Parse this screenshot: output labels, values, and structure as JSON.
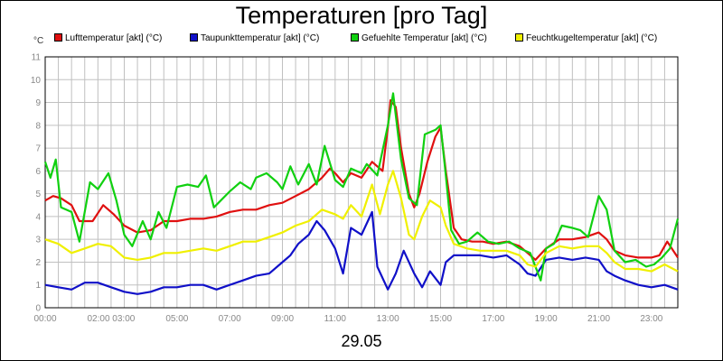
{
  "chart_data": {
    "type": "line",
    "title": "Temperaturen [pro Tag]",
    "ylabel": "°C",
    "xlabel": "29.05",
    "ylim": [
      0,
      11
    ],
    "xlim": [
      0,
      24
    ],
    "grid": true,
    "legend_position": "top",
    "y_ticks": [
      "0",
      "1",
      "2",
      "3",
      "4",
      "5",
      "6",
      "7",
      "8",
      "9",
      "10",
      "11"
    ],
    "x_ticks": [
      {
        "x": 0,
        "label": "00:00"
      },
      {
        "x": 2.5,
        "label": "02:00 03:00"
      },
      {
        "x": 5,
        "label": "05:00"
      },
      {
        "x": 7,
        "label": "07:00"
      },
      {
        "x": 9,
        "label": "09:00"
      },
      {
        "x": 11,
        "label": "11:00"
      },
      {
        "x": 13,
        "label": "13:00"
      },
      {
        "x": 15,
        "label": "15:00"
      },
      {
        "x": 17,
        "label": "17:00"
      },
      {
        "x": 19,
        "label": "19:00"
      },
      {
        "x": 21,
        "label": "21:00"
      },
      {
        "x": 23,
        "label": "23:00"
      }
    ],
    "series": [
      {
        "name": "Lufttemperatur [akt] (°C)",
        "color": "#e01010",
        "points": [
          [
            0,
            4.7
          ],
          [
            0.3,
            4.9
          ],
          [
            0.6,
            4.8
          ],
          [
            1,
            4.5
          ],
          [
            1.3,
            3.8
          ],
          [
            1.8,
            3.8
          ],
          [
            2.2,
            4.5
          ],
          [
            2.6,
            4.1
          ],
          [
            3,
            3.6
          ],
          [
            3.5,
            3.3
          ],
          [
            4,
            3.4
          ],
          [
            4.5,
            3.8
          ],
          [
            5,
            3.8
          ],
          [
            5.5,
            3.9
          ],
          [
            6,
            3.9
          ],
          [
            6.5,
            4.0
          ],
          [
            7,
            4.2
          ],
          [
            7.5,
            4.3
          ],
          [
            8,
            4.3
          ],
          [
            8.5,
            4.5
          ],
          [
            9,
            4.6
          ],
          [
            9.5,
            4.9
          ],
          [
            10,
            5.2
          ],
          [
            10.5,
            5.7
          ],
          [
            10.8,
            6.1
          ],
          [
            11,
            5.9
          ],
          [
            11.3,
            5.5
          ],
          [
            11.6,
            5.9
          ],
          [
            12,
            5.7
          ],
          [
            12.4,
            6.4
          ],
          [
            12.8,
            6.0
          ],
          [
            13,
            7.9
          ],
          [
            13.1,
            9.1
          ],
          [
            13.3,
            8.8
          ],
          [
            13.5,
            7.0
          ],
          [
            13.8,
            5.0
          ],
          [
            14,
            4.4
          ],
          [
            14.2,
            5.0
          ],
          [
            14.5,
            6.4
          ],
          [
            14.8,
            7.5
          ],
          [
            15,
            7.9
          ],
          [
            15.2,
            6.0
          ],
          [
            15.5,
            3.5
          ],
          [
            15.8,
            3.0
          ],
          [
            16.2,
            2.9
          ],
          [
            16.6,
            2.9
          ],
          [
            17,
            2.8
          ],
          [
            17.5,
            2.9
          ],
          [
            18,
            2.7
          ],
          [
            18.3,
            2.4
          ],
          [
            18.6,
            2.1
          ],
          [
            19,
            2.6
          ],
          [
            19.5,
            3.0
          ],
          [
            20,
            3.0
          ],
          [
            20.5,
            3.1
          ],
          [
            21,
            3.3
          ],
          [
            21.3,
            3.0
          ],
          [
            21.6,
            2.5
          ],
          [
            22,
            2.3
          ],
          [
            22.5,
            2.2
          ],
          [
            23,
            2.2
          ],
          [
            23.3,
            2.3
          ],
          [
            23.6,
            2.9
          ],
          [
            24,
            2.2
          ]
        ]
      },
      {
        "name": "Taupunkttemperatur [akt] (°C)",
        "color": "#1010c8",
        "points": [
          [
            0,
            1.0
          ],
          [
            0.5,
            0.9
          ],
          [
            1,
            0.8
          ],
          [
            1.5,
            1.1
          ],
          [
            2,
            1.1
          ],
          [
            2.5,
            0.9
          ],
          [
            3,
            0.7
          ],
          [
            3.5,
            0.6
          ],
          [
            4,
            0.7
          ],
          [
            4.5,
            0.9
          ],
          [
            5,
            0.9
          ],
          [
            5.5,
            1.0
          ],
          [
            6,
            1.0
          ],
          [
            6.5,
            0.8
          ],
          [
            7,
            1.0
          ],
          [
            7.5,
            1.2
          ],
          [
            8,
            1.4
          ],
          [
            8.5,
            1.5
          ],
          [
            9,
            2.0
          ],
          [
            9.3,
            2.3
          ],
          [
            9.6,
            2.8
          ],
          [
            10,
            3.2
          ],
          [
            10.3,
            3.8
          ],
          [
            10.6,
            3.4
          ],
          [
            11,
            2.6
          ],
          [
            11.3,
            1.5
          ],
          [
            11.6,
            3.5
          ],
          [
            12,
            3.2
          ],
          [
            12.4,
            4.2
          ],
          [
            12.6,
            1.8
          ],
          [
            13,
            0.8
          ],
          [
            13.3,
            1.5
          ],
          [
            13.6,
            2.5
          ],
          [
            14,
            1.5
          ],
          [
            14.3,
            0.9
          ],
          [
            14.6,
            1.6
          ],
          [
            15,
            1.0
          ],
          [
            15.2,
            2.0
          ],
          [
            15.5,
            2.3
          ],
          [
            16,
            2.3
          ],
          [
            16.5,
            2.3
          ],
          [
            17,
            2.2
          ],
          [
            17.5,
            2.3
          ],
          [
            18,
            1.9
          ],
          [
            18.3,
            1.5
          ],
          [
            18.6,
            1.4
          ],
          [
            19,
            2.1
          ],
          [
            19.5,
            2.2
          ],
          [
            20,
            2.1
          ],
          [
            20.5,
            2.2
          ],
          [
            21,
            2.1
          ],
          [
            21.3,
            1.6
          ],
          [
            21.6,
            1.4
          ],
          [
            22,
            1.2
          ],
          [
            22.5,
            1.0
          ],
          [
            23,
            0.9
          ],
          [
            23.5,
            1.0
          ],
          [
            24,
            0.8
          ]
        ]
      },
      {
        "name": "Gefuehlte Temperatur [akt] (°C)",
        "color": "#10d010",
        "points": [
          [
            0,
            6.4
          ],
          [
            0.2,
            5.7
          ],
          [
            0.4,
            6.5
          ],
          [
            0.6,
            4.4
          ],
          [
            1,
            4.2
          ],
          [
            1.3,
            2.9
          ],
          [
            1.7,
            5.5
          ],
          [
            2,
            5.2
          ],
          [
            2.4,
            5.9
          ],
          [
            2.7,
            4.7
          ],
          [
            3,
            3.2
          ],
          [
            3.3,
            2.7
          ],
          [
            3.7,
            3.8
          ],
          [
            4,
            3.0
          ],
          [
            4.3,
            4.2
          ],
          [
            4.6,
            3.5
          ],
          [
            5,
            5.3
          ],
          [
            5.4,
            5.4
          ],
          [
            5.8,
            5.3
          ],
          [
            6.1,
            5.8
          ],
          [
            6.4,
            4.4
          ],
          [
            7,
            5.1
          ],
          [
            7.4,
            5.5
          ],
          [
            7.8,
            5.2
          ],
          [
            8,
            5.7
          ],
          [
            8.4,
            5.9
          ],
          [
            8.8,
            5.5
          ],
          [
            9,
            5.2
          ],
          [
            9.3,
            6.2
          ],
          [
            9.6,
            5.4
          ],
          [
            10,
            6.3
          ],
          [
            10.3,
            5.4
          ],
          [
            10.6,
            7.1
          ],
          [
            11,
            5.6
          ],
          [
            11.3,
            5.3
          ],
          [
            11.6,
            6.1
          ],
          [
            12,
            5.9
          ],
          [
            12.2,
            6.3
          ],
          [
            12.6,
            5.8
          ],
          [
            13,
            8.0
          ],
          [
            13.2,
            9.4
          ],
          [
            13.5,
            6.5
          ],
          [
            13.8,
            4.8
          ],
          [
            14.1,
            4.5
          ],
          [
            14.4,
            7.6
          ],
          [
            14.8,
            7.8
          ],
          [
            15,
            8.0
          ],
          [
            15.2,
            5.8
          ],
          [
            15.4,
            3.4
          ],
          [
            15.7,
            2.8
          ],
          [
            16,
            2.9
          ],
          [
            16.4,
            3.3
          ],
          [
            16.8,
            2.9
          ],
          [
            17.2,
            2.8
          ],
          [
            17.6,
            2.9
          ],
          [
            18,
            2.6
          ],
          [
            18.4,
            2.4
          ],
          [
            18.8,
            1.2
          ],
          [
            19,
            2.6
          ],
          [
            19.3,
            2.8
          ],
          [
            19.6,
            3.6
          ],
          [
            20,
            3.5
          ],
          [
            20.3,
            3.4
          ],
          [
            20.6,
            3.1
          ],
          [
            21,
            4.9
          ],
          [
            21.3,
            4.3
          ],
          [
            21.6,
            2.5
          ],
          [
            22,
            2.0
          ],
          [
            22.4,
            2.1
          ],
          [
            22.8,
            1.8
          ],
          [
            23.1,
            1.9
          ],
          [
            23.4,
            2.2
          ],
          [
            23.7,
            2.6
          ],
          [
            24,
            3.9
          ]
        ]
      },
      {
        "name": "Feuchtkugeltemperatur [akt] (°C)",
        "color": "#f0f000",
        "points": [
          [
            0,
            3.0
          ],
          [
            0.5,
            2.8
          ],
          [
            1,
            2.4
          ],
          [
            1.5,
            2.6
          ],
          [
            2,
            2.8
          ],
          [
            2.5,
            2.7
          ],
          [
            3,
            2.2
          ],
          [
            3.5,
            2.1
          ],
          [
            4,
            2.2
          ],
          [
            4.5,
            2.4
          ],
          [
            5,
            2.4
          ],
          [
            5.5,
            2.5
          ],
          [
            6,
            2.6
          ],
          [
            6.5,
            2.5
          ],
          [
            7,
            2.7
          ],
          [
            7.5,
            2.9
          ],
          [
            8,
            2.9
          ],
          [
            8.5,
            3.1
          ],
          [
            9,
            3.3
          ],
          [
            9.5,
            3.6
          ],
          [
            10,
            3.8
          ],
          [
            10.5,
            4.3
          ],
          [
            11,
            4.1
          ],
          [
            11.3,
            3.9
          ],
          [
            11.6,
            4.5
          ],
          [
            12,
            4.0
          ],
          [
            12.4,
            5.4
          ],
          [
            12.7,
            4.1
          ],
          [
            13,
            5.4
          ],
          [
            13.2,
            6.0
          ],
          [
            13.5,
            4.8
          ],
          [
            13.8,
            3.2
          ],
          [
            14,
            3.0
          ],
          [
            14.3,
            4.0
          ],
          [
            14.6,
            4.7
          ],
          [
            15,
            4.4
          ],
          [
            15.2,
            3.6
          ],
          [
            15.5,
            2.8
          ],
          [
            16,
            2.6
          ],
          [
            16.5,
            2.5
          ],
          [
            17,
            2.5
          ],
          [
            17.5,
            2.5
          ],
          [
            18,
            2.3
          ],
          [
            18.3,
            1.9
          ],
          [
            18.6,
            1.8
          ],
          [
            19,
            2.4
          ],
          [
            19.5,
            2.7
          ],
          [
            20,
            2.6
          ],
          [
            20.5,
            2.7
          ],
          [
            21,
            2.7
          ],
          [
            21.3,
            2.4
          ],
          [
            21.6,
            2.0
          ],
          [
            22,
            1.7
          ],
          [
            22.5,
            1.7
          ],
          [
            23,
            1.6
          ],
          [
            23.5,
            1.9
          ],
          [
            24,
            1.6
          ]
        ]
      }
    ]
  },
  "colors": {
    "grid": "#c0c0c0",
    "axis": "#000000",
    "tick_text": "#888888"
  }
}
